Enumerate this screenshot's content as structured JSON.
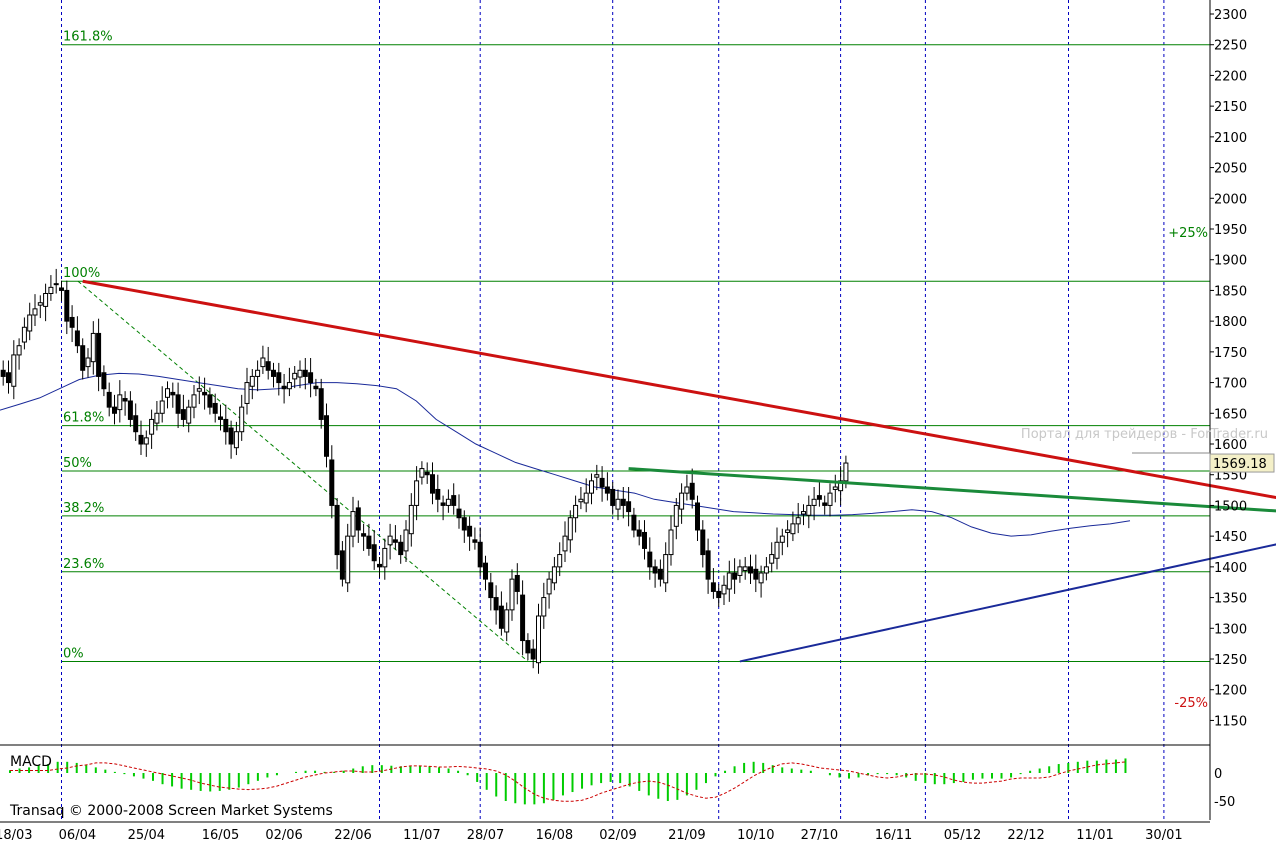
{
  "app": {
    "watermark": "Портал для трейдеров - ForTrader.ru",
    "copyright": "Transaq © 2000-2008 Screen Market Systems"
  },
  "colors": {
    "background": "#ffffff",
    "grid_dashed": "#0000c0",
    "fib_lines": "#008000",
    "resistance": "#cc1111",
    "mid_trend": "#1a8a3a",
    "support": "#1a2a99",
    "moving_average": "#1a2a99",
    "candles": "#000000",
    "macd_histogram": "#00cc00",
    "macd_signal": "#cc0000",
    "price_tag_bg": "#f4f0c8"
  },
  "chart_data": {
    "type": "candlestick",
    "y_axis": {
      "range": [
        1110,
        2300
      ],
      "ticks": [
        1150,
        1200,
        1250,
        1300,
        1350,
        1400,
        1450,
        1500,
        1550,
        1600,
        1650,
        1700,
        1750,
        1800,
        1850,
        1900,
        1950,
        2000,
        2050,
        2100,
        2150,
        2200,
        2250,
        2300
      ]
    },
    "x_axis": {
      "ticks": [
        {
          "label": "18/03",
          "index": 6
        },
        {
          "label": "06/04",
          "index": 18
        },
        {
          "label": "25/04",
          "index": 31
        },
        {
          "label": "16/05",
          "index": 45
        },
        {
          "label": "02/06",
          "index": 57
        },
        {
          "label": "22/06",
          "index": 70
        },
        {
          "label": "11/07",
          "index": 83
        },
        {
          "label": "28/07",
          "index": 95
        },
        {
          "label": "16/08",
          "index": 108
        },
        {
          "label": "02/09",
          "index": 120
        },
        {
          "label": "21/09",
          "index": 133
        },
        {
          "label": "10/10",
          "index": 146
        },
        {
          "label": "27/10",
          "index": 158
        },
        {
          "label": "16/11",
          "index": 172
        },
        {
          "label": "05/12",
          "index": 185
        },
        {
          "label": "22/12",
          "index": 197
        },
        {
          "label": "11/01",
          "index": 210
        },
        {
          "label": "30/01",
          "index": 223
        }
      ],
      "dashed_gridlines_at_index": [
        15,
        75,
        94,
        119,
        139,
        162,
        178,
        205,
        223
      ]
    },
    "last_price": "1569.18",
    "candles_close": [
      1720,
      1710,
      1700,
      1745,
      1760,
      1790,
      1810,
      1820,
      1830,
      1845,
      1855,
      1860,
      1850,
      1800,
      1790,
      1760,
      1720,
      1740,
      1780,
      1710,
      1690,
      1660,
      1650,
      1680,
      1670,
      1640,
      1620,
      1600,
      1610,
      1640,
      1650,
      1670,
      1690,
      1680,
      1650,
      1640,
      1660,
      1680,
      1690,
      1680,
      1660,
      1650,
      1640,
      1620,
      1600,
      1620,
      1660,
      1700,
      1710,
      1720,
      1740,
      1720,
      1710,
      1700,
      1690,
      1700,
      1715,
      1720,
      1710,
      1700,
      1690,
      1640,
      1580,
      1500,
      1420,
      1380,
      1450,
      1490,
      1460,
      1450,
      1430,
      1410,
      1400,
      1430,
      1450,
      1440,
      1420,
      1460,
      1500,
      1540,
      1560,
      1550,
      1520,
      1510,
      1500,
      1510,
      1500,
      1480,
      1460,
      1450,
      1440,
      1400,
      1380,
      1350,
      1330,
      1300,
      1330,
      1380,
      1360,
      1280,
      1260,
      1250,
      1320,
      1350,
      1380,
      1400,
      1420,
      1450,
      1480,
      1500,
      1510,
      1520,
      1540,
      1550,
      1530,
      1520,
      1500,
      1510,
      1500,
      1490,
      1460,
      1450,
      1430,
      1400,
      1390,
      1380,
      1420,
      1460,
      1500,
      1520,
      1530,
      1510,
      1460,
      1420,
      1380,
      1360,
      1350,
      1370,
      1390,
      1380,
      1400,
      1400,
      1390,
      1380,
      1390,
      1400,
      1420,
      1440,
      1450,
      1460,
      1470,
      1480,
      1490,
      1500,
      1510,
      1510,
      1500,
      1520,
      1530,
      1540,
      1569
    ],
    "moving_average": [
      1655,
      1665,
      1675,
      1690,
      1705,
      1712,
      1715,
      1714,
      1710,
      1705,
      1700,
      1695,
      1690,
      1688,
      1690,
      1695,
      1700,
      1700,
      1698,
      1695,
      1690,
      1670,
      1640,
      1620,
      1600,
      1585,
      1570,
      1560,
      1550,
      1540,
      1530,
      1525,
      1520,
      1510,
      1505,
      1500,
      1495,
      1490,
      1488,
      1486,
      1485,
      1484,
      1484,
      1485,
      1487,
      1490,
      1493,
      1490,
      1480,
      1465,
      1455,
      1450,
      1452,
      1458,
      1463,
      1467,
      1470,
      1475
    ],
    "fibonacci": [
      {
        "label": "161.8%",
        "value": 2250
      },
      {
        "label": "100%",
        "value": 1865
      },
      {
        "label": "61.8%",
        "value": 1630
      },
      {
        "label": "50%",
        "value": 1556
      },
      {
        "label": "38.2%",
        "value": 1483
      },
      {
        "label": "23.6%",
        "value": 1392
      },
      {
        "label": "0%",
        "value": 1246
      }
    ],
    "pct_labels": [
      {
        "label": "+25%",
        "value": 1945
      },
      {
        "label": "-25%",
        "value": 1180
      }
    ],
    "trendlines": [
      {
        "name": "resistance",
        "from": {
          "index": 19,
          "value": 1865
        },
        "to": {
          "index": 246,
          "value": 1510
        }
      },
      {
        "name": "mid",
        "from": {
          "index": 122,
          "value": 1560
        },
        "to": {
          "index": 246,
          "value": 1490
        }
      },
      {
        "name": "support",
        "from": {
          "index": 143,
          "value": 1246
        },
        "to": {
          "index": 246,
          "value": 1440
        }
      }
    ],
    "macd": {
      "label": "MACD",
      "y_ticks": [
        0,
        -50
      ],
      "histogram": [
        5,
        8,
        10,
        14,
        16,
        20,
        20,
        18,
        14,
        10,
        6,
        2,
        -2,
        -6,
        -10,
        -14,
        -20,
        -24,
        -28,
        -30,
        -32,
        -33,
        -32,
        -30,
        -26,
        -20,
        -14,
        -8,
        -4,
        0,
        2,
        4,
        4,
        2,
        2,
        4,
        8,
        12,
        14,
        14,
        13,
        12,
        12,
        13,
        12,
        10,
        8,
        4,
        -4,
        -16,
        -30,
        -42,
        -50,
        -54,
        -56,
        -56,
        -54,
        -48,
        -40,
        -34,
        -28,
        -22,
        -18,
        -16,
        -18,
        -24,
        -32,
        -40,
        -46,
        -50,
        -48,
        -40,
        -30,
        -18,
        -6,
        4,
        12,
        18,
        20,
        18,
        14,
        10,
        8,
        6,
        4,
        0,
        -4,
        -8,
        -10,
        -8,
        -4,
        -2,
        -2,
        -4,
        -8,
        -14,
        -18,
        -20,
        -20,
        -18,
        -16,
        -12,
        -10,
        -10,
        -10,
        -8,
        -2,
        4,
        8,
        12,
        16,
        18,
        20,
        22,
        22,
        24,
        24,
        26
      ]
    }
  }
}
